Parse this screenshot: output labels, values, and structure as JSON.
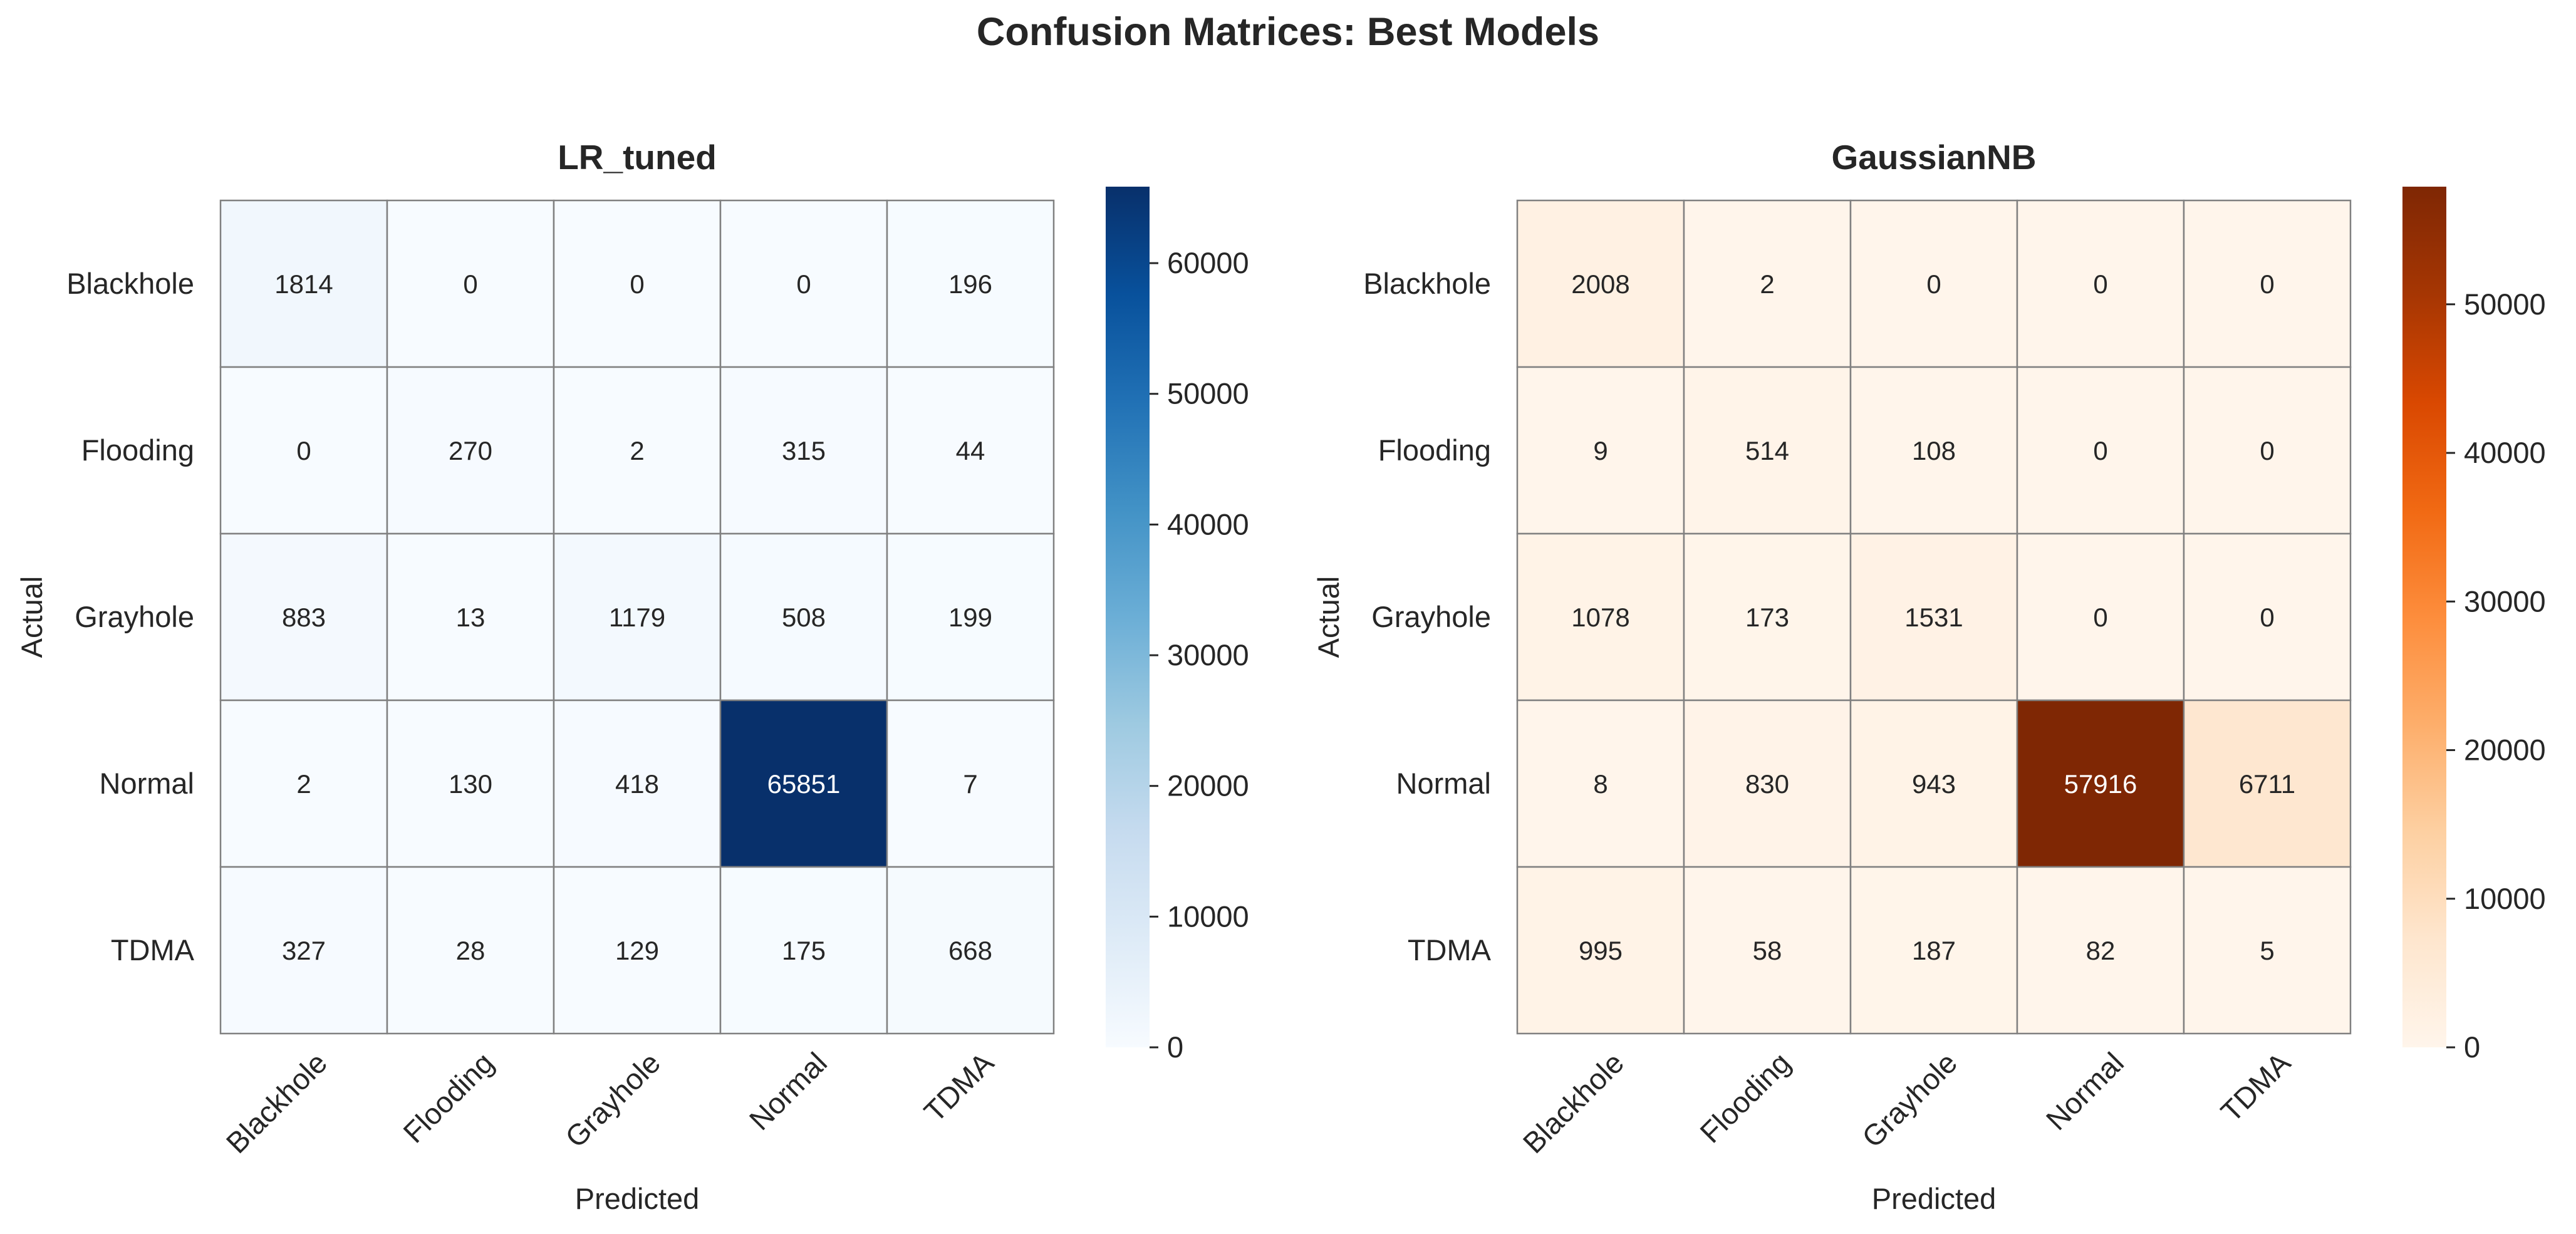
{
  "title": "Confusion Matrices: Best Models",
  "chart_data": [
    {
      "type": "heatmap",
      "title": "LR_tuned",
      "xlabel": "Predicted",
      "ylabel": "Actual",
      "x_categories": [
        "Blackhole",
        "Flooding",
        "Grayhole",
        "Normal",
        "TDMA"
      ],
      "y_categories": [
        "Blackhole",
        "Flooding",
        "Grayhole",
        "Normal",
        "TDMA"
      ],
      "values": [
        [
          1814,
          0,
          0,
          0,
          196
        ],
        [
          0,
          270,
          2,
          315,
          44
        ],
        [
          883,
          13,
          1179,
          508,
          199
        ],
        [
          2,
          130,
          418,
          65851,
          7
        ],
        [
          327,
          28,
          129,
          175,
          668
        ]
      ],
      "colormap": "Blues",
      "color_low": "#f7fbff",
      "color_high": "#08306b",
      "colorbar_range": [
        0,
        65851
      ],
      "colorbar_ticks": [
        0,
        10000,
        20000,
        30000,
        40000,
        50000,
        60000
      ]
    },
    {
      "type": "heatmap",
      "title": "GaussianNB",
      "xlabel": "Predicted",
      "ylabel": "Actual",
      "x_categories": [
        "Blackhole",
        "Flooding",
        "Grayhole",
        "Normal",
        "TDMA"
      ],
      "y_categories": [
        "Blackhole",
        "Flooding",
        "Grayhole",
        "Normal",
        "TDMA"
      ],
      "values": [
        [
          2008,
          2,
          0,
          0,
          0
        ],
        [
          9,
          514,
          108,
          0,
          0
        ],
        [
          1078,
          173,
          1531,
          0,
          0
        ],
        [
          8,
          830,
          943,
          57916,
          6711
        ],
        [
          995,
          58,
          187,
          82,
          5
        ]
      ],
      "colormap": "Oranges",
      "color_low": "#fff5eb",
      "color_high": "#7f2704",
      "colorbar_range": [
        0,
        57916
      ],
      "colorbar_ticks": [
        0,
        10000,
        20000,
        30000,
        40000,
        50000
      ]
    }
  ]
}
